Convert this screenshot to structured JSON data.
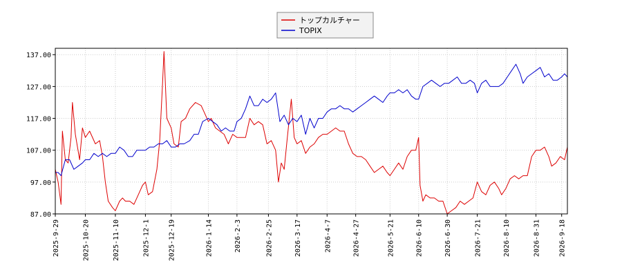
{
  "chart_data": {
    "type": "line",
    "title": "",
    "xlabel": "",
    "ylabel": "",
    "legend_placement": "top-center",
    "grid": true,
    "ylim": [
      87,
      139
    ],
    "yticks": [
      87,
      97,
      107,
      117,
      127,
      137
    ],
    "ytick_labels": [
      "87.00",
      "97.00",
      "107.00",
      "117.00",
      "127.00",
      "137.00"
    ],
    "xlim": [
      "2025-09-29",
      "2026-09-22"
    ],
    "xticks": [
      "2025-9-29",
      "2025-10-20",
      "2025-11-10",
      "2025-12-1",
      "2025-12-19",
      "2026-1-14",
      "2026-2-3",
      "2026-2-25",
      "2026-3-17",
      "2026-4-7",
      "2026-4-27",
      "2026-5-21",
      "2026-6-10",
      "2026-6-30",
      "2026-7-21",
      "2026-8-10",
      "2026-8-31",
      "2026-9-18"
    ],
    "series": [
      {
        "name": "トップカルチャー",
        "color": "#dd0000",
        "points": [
          [
            "2025-09-29",
            101
          ],
          [
            "2025-10-01",
            97
          ],
          [
            "2025-10-03",
            90
          ],
          [
            "2025-10-04",
            113
          ],
          [
            "2025-10-06",
            104
          ],
          [
            "2025-10-08",
            103
          ],
          [
            "2025-10-10",
            111
          ],
          [
            "2025-10-11",
            122
          ],
          [
            "2025-10-13",
            112
          ],
          [
            "2025-10-16",
            104
          ],
          [
            "2025-10-18",
            114
          ],
          [
            "2025-10-20",
            111
          ],
          [
            "2025-10-23",
            113
          ],
          [
            "2025-10-27",
            109
          ],
          [
            "2025-10-30",
            110
          ],
          [
            "2025-11-01",
            105
          ],
          [
            "2025-11-03",
            97
          ],
          [
            "2025-11-05",
            91
          ],
          [
            "2025-11-08",
            89
          ],
          [
            "2025-11-10",
            88
          ],
          [
            "2025-11-13",
            91
          ],
          [
            "2025-11-15",
            92
          ],
          [
            "2025-11-17",
            91
          ],
          [
            "2025-11-20",
            91
          ],
          [
            "2025-11-23",
            90
          ],
          [
            "2025-11-26",
            93
          ],
          [
            "2025-11-29",
            96
          ],
          [
            "2025-12-01",
            97
          ],
          [
            "2025-12-03",
            93
          ],
          [
            "2025-12-06",
            94
          ],
          [
            "2025-12-09",
            101
          ],
          [
            "2025-12-11",
            110
          ],
          [
            "2025-12-13",
            128
          ],
          [
            "2025-12-14",
            138
          ],
          [
            "2025-12-16",
            117
          ],
          [
            "2025-12-19",
            114
          ],
          [
            "2025-12-21",
            109
          ],
          [
            "2025-12-24",
            108
          ],
          [
            "2025-12-26",
            116
          ],
          [
            "2025-12-29",
            117
          ],
          [
            "2026-01-01",
            120
          ],
          [
            "2026-01-05",
            122
          ],
          [
            "2026-01-09",
            121
          ],
          [
            "2026-01-11",
            119
          ],
          [
            "2026-01-14",
            116
          ],
          [
            "2026-01-16",
            117
          ],
          [
            "2026-01-19",
            114
          ],
          [
            "2026-01-22",
            113
          ],
          [
            "2026-01-25",
            112
          ],
          [
            "2026-01-28",
            109
          ],
          [
            "2026-01-31",
            112
          ],
          [
            "2026-02-03",
            111
          ],
          [
            "2026-02-06",
            111
          ],
          [
            "2026-02-09",
            111
          ],
          [
            "2026-02-12",
            117
          ],
          [
            "2026-02-15",
            115
          ],
          [
            "2026-02-18",
            116
          ],
          [
            "2026-02-21",
            115
          ],
          [
            "2026-02-24",
            109
          ],
          [
            "2026-02-27",
            110
          ],
          [
            "2026-03-02",
            107
          ],
          [
            "2026-03-04",
            97
          ],
          [
            "2026-03-06",
            103
          ],
          [
            "2026-03-08",
            101
          ],
          [
            "2026-03-10",
            110
          ],
          [
            "2026-03-13",
            123
          ],
          [
            "2026-03-15",
            111
          ],
          [
            "2026-03-17",
            109
          ],
          [
            "2026-03-20",
            110
          ],
          [
            "2026-03-23",
            106
          ],
          [
            "2026-03-26",
            108
          ],
          [
            "2026-03-29",
            109
          ],
          [
            "2026-04-01",
            111
          ],
          [
            "2026-04-04",
            112
          ],
          [
            "2026-04-07",
            112
          ],
          [
            "2026-04-10",
            113
          ],
          [
            "2026-04-13",
            114
          ],
          [
            "2026-04-16",
            113
          ],
          [
            "2026-04-19",
            113
          ],
          [
            "2026-04-22",
            109
          ],
          [
            "2026-04-25",
            106
          ],
          [
            "2026-04-28",
            105
          ],
          [
            "2026-05-01",
            105
          ],
          [
            "2026-05-04",
            104
          ],
          [
            "2026-05-07",
            102
          ],
          [
            "2026-05-10",
            100
          ],
          [
            "2026-05-13",
            101
          ],
          [
            "2026-05-16",
            102
          ],
          [
            "2026-05-19",
            100
          ],
          [
            "2026-05-21",
            99
          ],
          [
            "2026-05-24",
            101
          ],
          [
            "2026-05-27",
            103
          ],
          [
            "2026-05-30",
            101
          ],
          [
            "2026-06-02",
            105
          ],
          [
            "2026-06-05",
            107
          ],
          [
            "2026-06-08",
            107
          ],
          [
            "2026-06-10",
            111
          ],
          [
            "2026-06-11",
            96
          ],
          [
            "2026-06-13",
            91
          ],
          [
            "2026-06-15",
            93
          ],
          [
            "2026-06-18",
            92
          ],
          [
            "2026-06-21",
            92
          ],
          [
            "2026-06-24",
            91
          ],
          [
            "2026-06-27",
            91
          ],
          [
            "2026-06-30",
            87
          ],
          [
            "2026-07-03",
            88
          ],
          [
            "2026-07-06",
            89
          ],
          [
            "2026-07-09",
            91
          ],
          [
            "2026-07-12",
            90
          ],
          [
            "2026-07-15",
            91
          ],
          [
            "2026-07-18",
            92
          ],
          [
            "2026-07-21",
            97
          ],
          [
            "2026-07-24",
            94
          ],
          [
            "2026-07-27",
            93
          ],
          [
            "2026-07-30",
            96
          ],
          [
            "2026-08-02",
            97
          ],
          [
            "2026-08-05",
            95
          ],
          [
            "2026-08-07",
            93
          ],
          [
            "2026-08-10",
            95
          ],
          [
            "2026-08-13",
            98
          ],
          [
            "2026-08-16",
            99
          ],
          [
            "2026-08-19",
            98
          ],
          [
            "2026-08-22",
            99
          ],
          [
            "2026-08-25",
            99
          ],
          [
            "2026-08-28",
            105
          ],
          [
            "2026-08-31",
            107
          ],
          [
            "2026-09-03",
            107
          ],
          [
            "2026-09-06",
            108
          ],
          [
            "2026-09-09",
            105
          ],
          [
            "2026-09-11",
            102
          ],
          [
            "2026-09-14",
            103
          ],
          [
            "2026-09-17",
            105
          ],
          [
            "2026-09-20",
            104
          ],
          [
            "2026-09-22",
            108
          ]
        ]
      },
      {
        "name": "TOPIX",
        "color": "#0000cc",
        "points": [
          [
            "2025-09-29",
            100
          ],
          [
            "2025-10-01",
            100
          ],
          [
            "2025-10-03",
            99
          ],
          [
            "2025-10-06",
            104
          ],
          [
            "2025-10-09",
            104
          ],
          [
            "2025-10-12",
            101
          ],
          [
            "2025-10-15",
            102
          ],
          [
            "2025-10-18",
            103
          ],
          [
            "2025-10-20",
            104
          ],
          [
            "2025-10-23",
            104
          ],
          [
            "2025-10-26",
            106
          ],
          [
            "2025-10-29",
            105
          ],
          [
            "2025-11-01",
            106
          ],
          [
            "2025-11-04",
            105
          ],
          [
            "2025-11-07",
            106
          ],
          [
            "2025-11-10",
            106
          ],
          [
            "2025-11-13",
            108
          ],
          [
            "2025-11-16",
            107
          ],
          [
            "2025-11-19",
            105
          ],
          [
            "2025-11-22",
            105
          ],
          [
            "2025-11-25",
            107
          ],
          [
            "2025-11-28",
            107
          ],
          [
            "2025-12-01",
            107
          ],
          [
            "2025-12-04",
            108
          ],
          [
            "2025-12-07",
            108
          ],
          [
            "2025-12-10",
            109
          ],
          [
            "2025-12-13",
            109
          ],
          [
            "2025-12-16",
            110
          ],
          [
            "2025-12-19",
            108
          ],
          [
            "2025-12-22",
            108
          ],
          [
            "2025-12-25",
            109
          ],
          [
            "2025-12-28",
            109
          ],
          [
            "2026-01-01",
            110
          ],
          [
            "2026-01-04",
            112
          ],
          [
            "2026-01-07",
            112
          ],
          [
            "2026-01-10",
            116
          ],
          [
            "2026-01-14",
            117
          ],
          [
            "2026-01-17",
            116
          ],
          [
            "2026-01-20",
            115
          ],
          [
            "2026-01-23",
            113
          ],
          [
            "2026-01-26",
            114
          ],
          [
            "2026-01-29",
            113
          ],
          [
            "2026-02-01",
            113
          ],
          [
            "2026-02-03",
            116
          ],
          [
            "2026-02-06",
            117
          ],
          [
            "2026-02-09",
            120
          ],
          [
            "2026-02-12",
            124
          ],
          [
            "2026-02-15",
            121
          ],
          [
            "2026-02-18",
            121
          ],
          [
            "2026-02-21",
            123
          ],
          [
            "2026-02-24",
            122
          ],
          [
            "2026-02-27",
            123
          ],
          [
            "2026-03-02",
            125
          ],
          [
            "2026-03-05",
            116
          ],
          [
            "2026-03-08",
            118
          ],
          [
            "2026-03-11",
            115
          ],
          [
            "2026-03-14",
            117
          ],
          [
            "2026-03-17",
            116
          ],
          [
            "2026-03-20",
            118
          ],
          [
            "2026-03-23",
            112
          ],
          [
            "2026-03-26",
            117
          ],
          [
            "2026-03-29",
            114
          ],
          [
            "2026-04-01",
            117
          ],
          [
            "2026-04-04",
            117
          ],
          [
            "2026-04-07",
            119
          ],
          [
            "2026-04-10",
            120
          ],
          [
            "2026-04-13",
            120
          ],
          [
            "2026-04-16",
            121
          ],
          [
            "2026-04-19",
            120
          ],
          [
            "2026-04-22",
            120
          ],
          [
            "2026-04-25",
            119
          ],
          [
            "2026-04-28",
            120
          ],
          [
            "2026-05-01",
            121
          ],
          [
            "2026-05-04",
            122
          ],
          [
            "2026-05-07",
            123
          ],
          [
            "2026-05-10",
            124
          ],
          [
            "2026-05-13",
            123
          ],
          [
            "2026-05-16",
            122
          ],
          [
            "2026-05-19",
            124
          ],
          [
            "2026-05-21",
            125
          ],
          [
            "2026-05-24",
            125
          ],
          [
            "2026-05-27",
            126
          ],
          [
            "2026-05-30",
            125
          ],
          [
            "2026-06-02",
            126
          ],
          [
            "2026-06-05",
            124
          ],
          [
            "2026-06-08",
            123
          ],
          [
            "2026-06-10",
            123
          ],
          [
            "2026-06-13",
            127
          ],
          [
            "2026-06-16",
            128
          ],
          [
            "2026-06-19",
            129
          ],
          [
            "2026-06-22",
            128
          ],
          [
            "2026-06-25",
            127
          ],
          [
            "2026-06-28",
            128
          ],
          [
            "2026-07-01",
            128
          ],
          [
            "2026-07-04",
            129
          ],
          [
            "2026-07-07",
            130
          ],
          [
            "2026-07-10",
            128
          ],
          [
            "2026-07-13",
            128
          ],
          [
            "2026-07-16",
            129
          ],
          [
            "2026-07-19",
            128
          ],
          [
            "2026-07-21",
            125
          ],
          [
            "2026-07-24",
            128
          ],
          [
            "2026-07-27",
            129
          ],
          [
            "2026-07-30",
            127
          ],
          [
            "2026-08-02",
            127
          ],
          [
            "2026-08-05",
            127
          ],
          [
            "2026-08-08",
            128
          ],
          [
            "2026-08-11",
            130
          ],
          [
            "2026-08-14",
            132
          ],
          [
            "2026-08-17",
            134
          ],
          [
            "2026-08-20",
            131
          ],
          [
            "2026-08-22",
            128
          ],
          [
            "2026-08-25",
            130
          ],
          [
            "2026-08-28",
            131
          ],
          [
            "2026-08-31",
            132
          ],
          [
            "2026-09-03",
            133
          ],
          [
            "2026-09-06",
            130
          ],
          [
            "2026-09-09",
            131
          ],
          [
            "2026-09-12",
            129
          ],
          [
            "2026-09-15",
            129
          ],
          [
            "2026-09-18",
            130
          ],
          [
            "2026-09-20",
            131
          ],
          [
            "2026-09-22",
            130
          ]
        ]
      }
    ]
  }
}
